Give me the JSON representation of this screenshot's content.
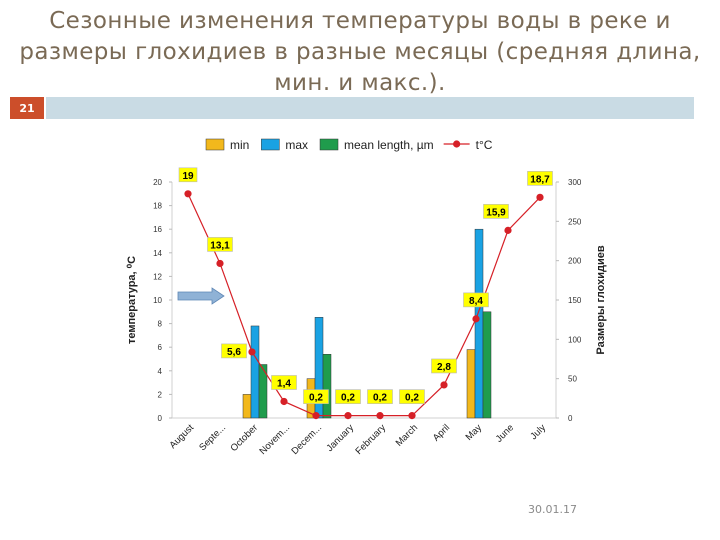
{
  "slide": {
    "title_line1": "Сезонные изменения температуры воды в реке и",
    "title_line2": "размеры глохидиев в разные месяцы (средняя длина,",
    "title_line3": "мин. и макс.).",
    "slide_number": "21",
    "date": "30.01.17",
    "accent_color": "#cc4e2a",
    "band_color": "#c9dbe4"
  },
  "chart_data": {
    "type": "bar",
    "categories": [
      "August",
      "Septe...",
      "October",
      "Novem...",
      "Decem...",
      "January",
      "February",
      "March",
      "April",
      "May",
      "June",
      "July"
    ],
    "series": [
      {
        "name": "min",
        "type": "bar",
        "axis": "right",
        "color": "#f2b81c",
        "values": [
          null,
          null,
          30,
          null,
          50,
          null,
          null,
          null,
          null,
          87,
          null,
          null
        ]
      },
      {
        "name": "max",
        "type": "bar",
        "axis": "right",
        "color": "#1aa2e3",
        "values": [
          null,
          null,
          117,
          null,
          128,
          null,
          null,
          null,
          null,
          240,
          null,
          null
        ]
      },
      {
        "name": "mean length, µm",
        "type": "bar",
        "axis": "right",
        "color": "#1f9c4c",
        "values": [
          null,
          null,
          68,
          null,
          81,
          null,
          null,
          null,
          null,
          135,
          null,
          null
        ]
      },
      {
        "name": "t°C",
        "type": "line",
        "axis": "left",
        "color": "#d62027",
        "values": [
          19,
          13.1,
          5.6,
          1.4,
          0.2,
          0.2,
          0.2,
          0.2,
          2.8,
          8.4,
          15.9,
          18.7
        ]
      }
    ],
    "data_labels": [
      "19",
      "13,1",
      "5,6",
      "1,4",
      "0,2",
      "0,2",
      "0,2",
      "0,2",
      "2,8",
      "8,4",
      "15,9",
      "18,7"
    ],
    "ylabel_left": "температура, ⁰С",
    "ylabel_right": "Размеры глохидиев",
    "ylim_left": [
      0,
      20
    ],
    "ylim_right": [
      0,
      300
    ],
    "yticks_left": [
      "0",
      "2",
      "4",
      "6",
      "8",
      "10",
      "12",
      "14",
      "16",
      "18",
      "20"
    ],
    "yticks_right": [
      "0",
      "50",
      "100",
      "150",
      "200",
      "250",
      "300"
    ],
    "grid": false,
    "legend_position": "top",
    "annotation": "blue arrow pointing right at the 10 tick of the left axis"
  }
}
